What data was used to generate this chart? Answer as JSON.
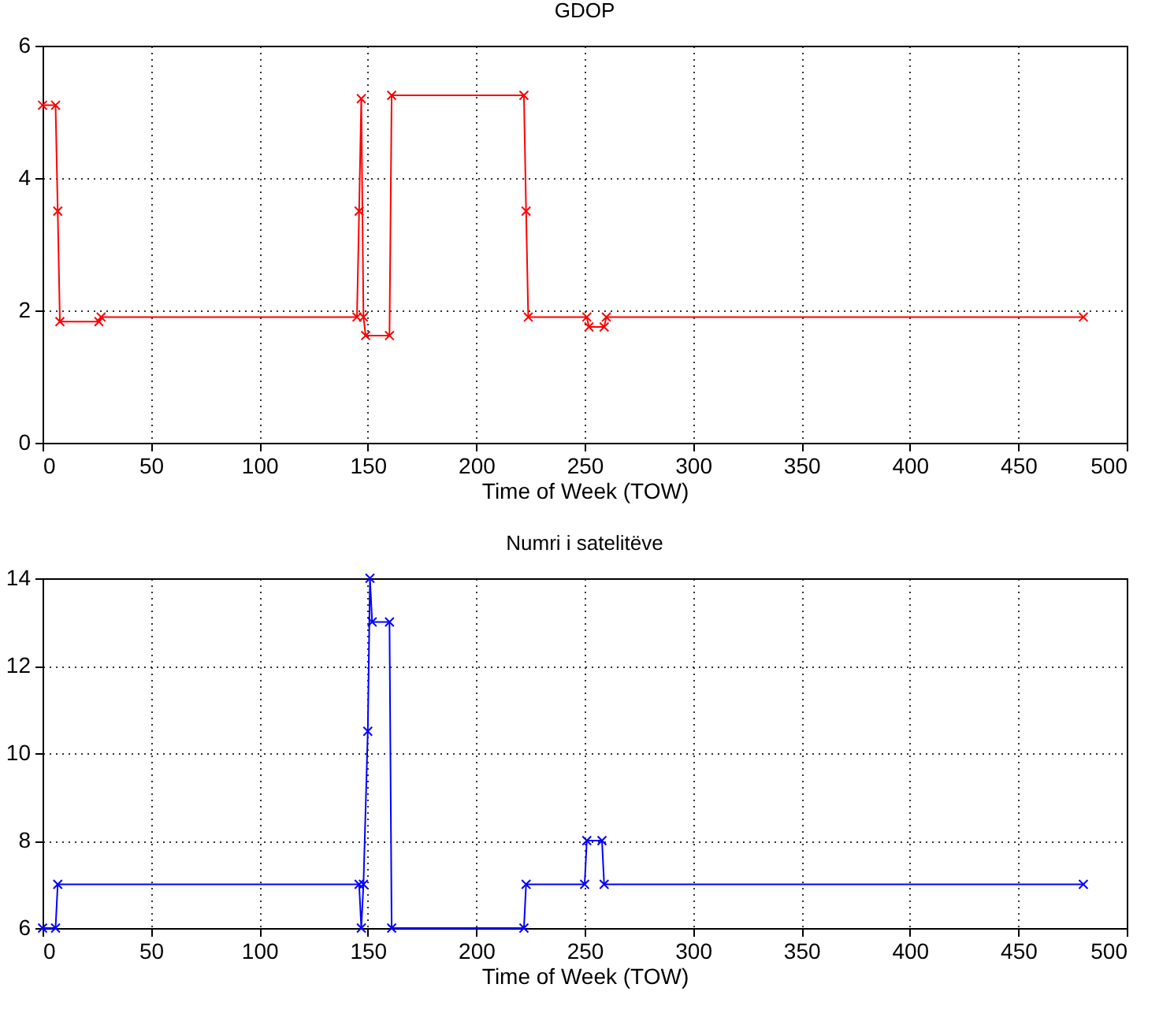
{
  "chart_data": [
    {
      "type": "line",
      "title": "GDOP",
      "xlabel": "Time of Week (TOW)",
      "xlim": [
        0,
        500
      ],
      "xticks": [
        0,
        50,
        100,
        150,
        200,
        250,
        300,
        350,
        400,
        450,
        500
      ],
      "ylim": [
        0,
        6
      ],
      "yticks": [
        0,
        2,
        4,
        6
      ],
      "grid": true,
      "marker": "cross",
      "line_style": "solid",
      "series": [
        {
          "color": "#ff0000",
          "x": [
            0,
            6,
            7,
            8,
            26,
            27,
            145,
            146,
            147,
            148,
            149,
            160,
            161,
            222,
            223,
            224,
            251,
            252,
            259,
            260,
            480
          ],
          "values": [
            5.1,
            5.1,
            3.5,
            1.83,
            1.83,
            1.9,
            1.9,
            3.5,
            5.2,
            1.9,
            1.62,
            1.62,
            5.25,
            5.25,
            3.5,
            1.9,
            1.9,
            1.75,
            1.75,
            1.9,
            1.9
          ]
        }
      ]
    },
    {
      "type": "line",
      "title": "Numri i satelitëve",
      "xlabel": "Time of Week (TOW)",
      "xlim": [
        0,
        500
      ],
      "xticks": [
        0,
        50,
        100,
        150,
        200,
        250,
        300,
        350,
        400,
        450,
        500
      ],
      "ylim": [
        6,
        14
      ],
      "yticks": [
        6,
        8,
        10,
        12,
        14
      ],
      "grid": true,
      "marker": "cross",
      "line_style": "solid",
      "series": [
        {
          "color": "#0000ff",
          "x": [
            0,
            6,
            7,
            146,
            147,
            148,
            150,
            151,
            152,
            160,
            161,
            222,
            223,
            250,
            251,
            258,
            259,
            480
          ],
          "values": [
            6,
            6,
            7,
            7,
            6,
            7,
            10.5,
            14,
            13,
            13,
            6,
            6,
            7,
            7,
            8,
            8,
            7,
            7
          ]
        }
      ]
    }
  ]
}
